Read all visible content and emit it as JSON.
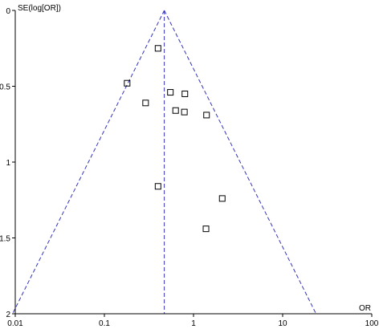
{
  "chart_data": {
    "type": "scatter",
    "title": "",
    "xlabel": "OR",
    "ylabel": "SE(log[OR])",
    "x_scale": "log",
    "x_ticks": [
      0.01,
      0.1,
      1,
      10,
      100
    ],
    "x_tick_labels": [
      "0.01",
      "0.1",
      "1",
      "10",
      "100"
    ],
    "y_ticks": [
      0,
      0.5,
      1,
      1.5,
      2
    ],
    "y_tick_labels": [
      "0",
      "0.5",
      "1",
      "1.5",
      "2"
    ],
    "xlim": [
      0.01,
      100
    ],
    "ylim": [
      0,
      2
    ],
    "y_inverted": true,
    "grid": false,
    "pooled_or": 0.47,
    "funnel_z": 1.96,
    "points": [
      {
        "x": 0.4,
        "y": 0.25
      },
      {
        "x": 0.18,
        "y": 0.48
      },
      {
        "x": 0.55,
        "y": 0.54
      },
      {
        "x": 0.8,
        "y": 0.55
      },
      {
        "x": 0.29,
        "y": 0.61
      },
      {
        "x": 0.63,
        "y": 0.66
      },
      {
        "x": 0.79,
        "y": 0.67
      },
      {
        "x": 1.4,
        "y": 0.69
      },
      {
        "x": 0.4,
        "y": 1.16
      },
      {
        "x": 2.1,
        "y": 1.24
      },
      {
        "x": 1.38,
        "y": 1.44
      }
    ],
    "colors": {
      "axis": "#000000",
      "funnel": "#3333bb",
      "pooled": "#3333bb",
      "marker": "#000000"
    }
  }
}
